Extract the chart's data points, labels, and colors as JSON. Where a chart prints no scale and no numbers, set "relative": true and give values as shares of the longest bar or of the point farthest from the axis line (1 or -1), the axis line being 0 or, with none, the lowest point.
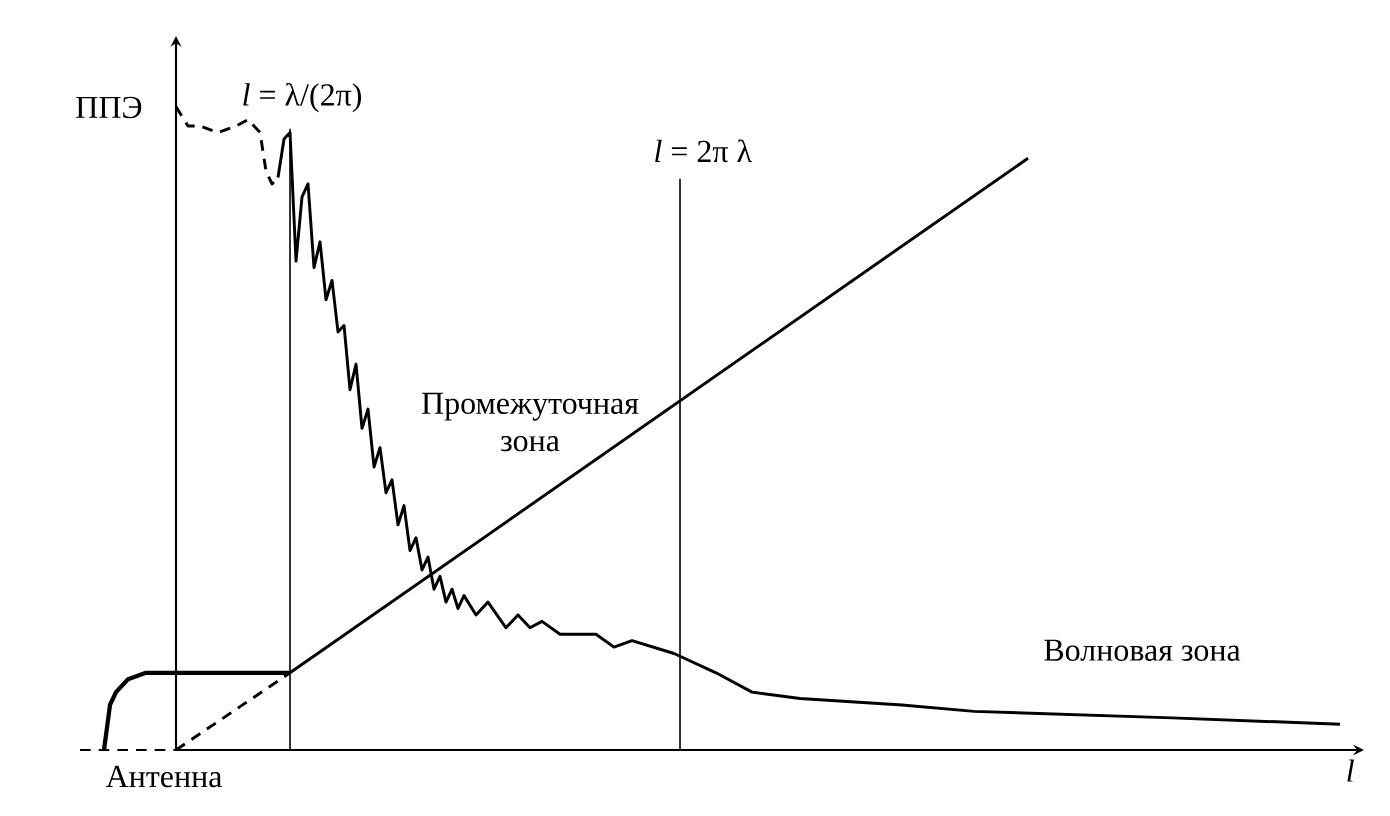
{
  "chart_data": {
    "type": "line",
    "relative": true,
    "xlabel": "*l*",
    "ylabel": "ППЭ",
    "categories": [
      null,
      null,
      null,
      null,
      null,
      null,
      null,
      null,
      null,
      null,
      null,
      null,
      null,
      null,
      null,
      null,
      null,
      null,
      null,
      null,
      null,
      null,
      null,
      null,
      null,
      null,
      null,
      null,
      null,
      null,
      null,
      null,
      null,
      null,
      null,
      null,
      null,
      null,
      null,
      null,
      null,
      null,
      null,
      null,
      null,
      null,
      null,
      null,
      null,
      null,
      null,
      null,
      null,
      null,
      null,
      null,
      null,
      null,
      null,
      null,
      null,
      null,
      null,
      null,
      null,
      null,
      null,
      null,
      null,
      null,
      null,
      null,
      null,
      null,
      null,
      null,
      null,
      null,
      null,
      null,
      null,
      null,
      null,
      null,
      null,
      null,
      null,
      null,
      null,
      null,
      null,
      null,
      null,
      null,
      null,
      null,
      null,
      null,
      null,
      null,
      null,
      null,
      null,
      null,
      null,
      null,
      null,
      null,
      null,
      null,
      null,
      null,
      null,
      null,
      null,
      null,
      null,
      null,
      null,
      null,
      null,
      null,
      null,
      null,
      null,
      null,
      null,
      null,
      null,
      null,
      null,
      null,
      null,
      null,
      null,
      null,
      null,
      null,
      null,
      null,
      null,
      null,
      null,
      null,
      null,
      null,
      null,
      null,
      null,
      null,
      null,
      null,
      null,
      null,
      null,
      null,
      null,
      null,
      null,
      null,
      null,
      null,
      null,
      null,
      null,
      null,
      null,
      null,
      null,
      null,
      null,
      null,
      null,
      null,
      null,
      null,
      null,
      null,
      null,
      null,
      null,
      null,
      null,
      null,
      null,
      null,
      null,
      null,
      null,
      null,
      null,
      null,
      null,
      null,
      null,
      null,
      null,
      null,
      null,
      null,
      null,
      null,
      null,
      null,
      null,
      null,
      null,
      null,
      null,
      null,
      null,
      null,
      null,
      null,
      null
    ],
    "series": [
      {
        "line_style": "dashed",
        "color": "#000000",
        "values": [
          null,
          null,
          null,
          null,
          null,
          null,
          null,
          null,
          null,
          null,
          null,
          null,
          null,
          null,
          null,
          null,
          1.0,
          null,
          0.97,
          null,
          0.97,
          null,
          null,
          0.96,
          null,
          null,
          0.97,
          null,
          0.98,
          null,
          0.96,
          0.9,
          0.88,
          0.89,
          null,
          null,
          null,
          null,
          null,
          null,
          null,
          null,
          null,
          null,
          null,
          null,
          null,
          null,
          null,
          null,
          null,
          null,
          null,
          null,
          null,
          null,
          null,
          null,
          null,
          null,
          null,
          null,
          null,
          null,
          null,
          null,
          null,
          null,
          null,
          null,
          null,
          null,
          null,
          null,
          null,
          null,
          null,
          null,
          null,
          null,
          null,
          null,
          null,
          null,
          null,
          null,
          null,
          null,
          null,
          null,
          null,
          null,
          null,
          null,
          null,
          null,
          null,
          null,
          null,
          null,
          null,
          null,
          null,
          null,
          null,
          null,
          null,
          null,
          null,
          null,
          null,
          null,
          null,
          null,
          null,
          null,
          null,
          null,
          null,
          null,
          null,
          null,
          null,
          null,
          null,
          null,
          null,
          null,
          null,
          null,
          null,
          null,
          null,
          null,
          null,
          null,
          null,
          null,
          null,
          null,
          null,
          null,
          null,
          null,
          null,
          null,
          null,
          null,
          null,
          null,
          null,
          null,
          null,
          null,
          null,
          null,
          null,
          null,
          null,
          null,
          null,
          null,
          null,
          null,
          null,
          null,
          null,
          null,
          null,
          null,
          null,
          null,
          null,
          null,
          null,
          null,
          null,
          null,
          null,
          null,
          null,
          null,
          null,
          null,
          null,
          null,
          null,
          null,
          null,
          null,
          null,
          null,
          null,
          null,
          null,
          null,
          null,
          null,
          null,
          null,
          null,
          null,
          null,
          null,
          null,
          null,
          null,
          null,
          null,
          null,
          null,
          null,
          null,
          null,
          null
        ]
      },
      {
        "line_style": "solid",
        "color": "#000000",
        "values": [
          null,
          null,
          null,
          null,
          null,
          null,
          null,
          null,
          null,
          null,
          null,
          null,
          null,
          null,
          null,
          null,
          null,
          null,
          null,
          null,
          null,
          null,
          null,
          null,
          null,
          null,
          null,
          null,
          null,
          null,
          null,
          null,
          null,
          0.89,
          0.95,
          0.96,
          0.76,
          0.86,
          0.88,
          0.75,
          0.79,
          0.7,
          0.73,
          0.65,
          0.66,
          0.56,
          0.6,
          0.5,
          0.53,
          0.44,
          0.47,
          0.4,
          0.42,
          0.35,
          0.38,
          0.31,
          0.33,
          0.28,
          0.3,
          0.25,
          0.27,
          0.23,
          0.25,
          0.22,
          0.24,
          null,
          0.21,
          null,
          0.23,
          null,
          null,
          0.19,
          null,
          0.21,
          null,
          0.19,
          null,
          0.2,
          null,
          null,
          0.18,
          null,
          null,
          0.18,
          null,
          null,
          0.18,
          null,
          null,
          0.16,
          null,
          null,
          0.17,
          null,
          null,
          null,
          null,
          null,
          null,
          0.15,
          null,
          null,
          null,
          null,
          null,
          null,
          0.12,
          null,
          null,
          null,
          null,
          null,
          0.09,
          null,
          null,
          null,
          null,
          null,
          null,
          null,
          0.08,
          null,
          null,
          null,
          null,
          null,
          null,
          null,
          null,
          null,
          null,
          null,
          null,
          null,
          null,
          null,
          null,
          0.07,
          null,
          null,
          null,
          null,
          null,
          null,
          null,
          null,
          null,
          null,
          null,
          0.06,
          null,
          null,
          null,
          null,
          null,
          null,
          null,
          null,
          null,
          null,
          null,
          null,
          null,
          null,
          null,
          null,
          null,
          null,
          null,
          null,
          null,
          null,
          null,
          null,
          null,
          null,
          null,
          null,
          null,
          null,
          null,
          null,
          0.05,
          null,
          null,
          null,
          null,
          null,
          null,
          null,
          null,
          null,
          null,
          null,
          null,
          null,
          null,
          null,
          null,
          null,
          null,
          null,
          null,
          null,
          null,
          null,
          null,
          null,
          null,
          null,
          0.04,
          null,
          null,
          null,
          null
        ]
      },
      {
        "line_style": "dashed",
        "color": "#000000",
        "values": [
          null,
          null,
          null,
          null,
          null,
          null,
          null,
          null,
          null,
          null,
          null,
          null,
          null,
          null,
          null,
          null,
          0,
          null,
          null,
          null,
          null,
          null,
          null,
          null,
          null,
          null,
          null,
          null,
          null,
          null,
          null,
          null,
          null,
          null,
          null,
          0.12,
          null,
          null,
          null,
          null,
          null,
          null,
          null,
          null,
          null,
          null,
          null,
          null,
          null,
          null,
          null,
          null,
          null,
          null,
          null,
          null,
          null,
          null,
          null,
          null,
          null,
          null,
          null,
          null,
          null,
          null,
          null,
          null,
          null,
          null,
          null,
          null,
          null,
          null,
          null,
          null,
          null,
          null,
          null,
          null,
          null,
          null,
          null,
          null,
          null,
          null,
          null,
          null,
          null,
          null,
          null,
          null,
          null,
          null,
          null,
          null,
          null,
          null,
          null,
          null,
          null,
          null,
          null,
          null,
          null,
          null,
          null,
          null,
          null,
          null,
          null,
          null,
          null,
          null,
          null,
          null,
          null,
          null,
          null,
          null,
          null,
          null,
          null,
          null,
          null,
          null,
          null,
          null,
          null,
          null,
          null,
          null,
          null,
          null,
          null,
          null,
          null,
          null,
          null,
          null,
          null,
          null,
          null,
          null,
          null,
          null,
          null,
          null,
          null,
          null,
          null,
          null,
          null,
          null,
          null,
          null,
          null,
          null,
          null,
          null,
          null,
          null,
          null,
          null,
          null,
          null,
          null,
          null,
          null,
          null,
          null,
          null,
          null,
          null,
          null,
          null,
          null,
          null,
          null,
          null,
          null,
          null,
          null,
          null,
          null,
          null,
          null,
          null,
          null,
          null,
          null,
          null,
          null,
          null,
          null,
          null,
          null,
          null,
          null,
          null,
          null,
          null,
          null,
          null,
          null,
          null,
          null,
          null,
          null,
          null,
          null,
          null,
          null,
          null,
          null
        ]
      },
      {
        "line_style": "solid",
        "color": "#000000",
        "values": [
          null,
          null,
          null,
          null,
          null,
          null,
          null,
          null,
          null,
          null,
          null,
          null,
          null,
          null,
          null,
          null,
          null,
          null,
          null,
          null,
          null,
          null,
          null,
          null,
          null,
          null,
          null,
          null,
          null,
          null,
          null,
          null,
          null,
          null,
          null,
          0.12,
          null,
          null,
          null,
          null,
          null,
          null,
          null,
          null,
          null,
          null,
          null,
          null,
          null,
          null,
          null,
          null,
          null,
          null,
          null,
          null,
          null,
          null,
          null,
          null,
          null,
          null,
          null,
          null,
          null,
          null,
          null,
          null,
          null,
          null,
          null,
          null,
          null,
          null,
          null,
          null,
          null,
          null,
          null,
          null,
          null,
          null,
          null,
          null,
          null,
          null,
          null,
          null,
          null,
          null,
          null,
          null,
          null,
          null,
          null,
          null,
          null,
          null,
          null,
          null,
          null,
          null,
          null,
          null,
          null,
          null,
          null,
          null,
          null,
          null,
          null,
          null,
          null,
          null,
          null,
          null,
          null,
          null,
          null,
          null,
          null,
          null,
          null,
          null,
          null,
          null,
          null,
          null,
          null,
          null,
          null,
          null,
          null,
          null,
          null,
          null,
          null,
          null,
          null,
          null,
          null,
          null,
          null,
          null,
          null,
          null,
          null,
          null,
          null,
          null,
          null,
          null,
          null,
          null,
          null,
          null,
          null,
          null,
          0.92,
          null,
          null,
          null,
          null,
          null,
          null,
          null,
          null,
          null,
          null,
          null,
          null,
          null,
          null,
          null,
          null,
          null,
          null,
          null,
          null,
          null,
          null,
          null,
          null,
          null,
          null,
          null,
          null,
          null,
          null,
          null,
          null,
          null,
          null,
          null,
          null,
          null,
          null,
          null,
          null,
          null,
          null,
          null,
          null,
          null,
          null,
          null,
          null,
          null,
          null,
          null,
          null,
          null,
          null,
          null,
          null
        ]
      },
      {
        "line_style": "solid",
        "color": "#000000",
        "values": [
          null,
          null,
          null,
          null,
          0,
          0.07,
          0.09,
          null,
          0.11,
          null,
          null,
          0.12,
          null,
          null,
          null,
          null,
          0.12,
          null,
          null,
          null,
          null,
          null,
          null,
          null,
          null,
          null,
          null,
          null,
          null,
          null,
          null,
          null,
          null,
          null,
          null,
          0.12,
          null,
          null,
          null,
          null,
          null,
          null,
          null,
          null,
          null,
          null,
          null,
          null,
          null,
          null,
          null,
          null,
          null,
          null,
          null,
          null,
          null,
          null,
          null,
          null,
          null,
          null,
          null,
          null,
          null,
          null,
          null,
          null,
          null,
          null,
          null,
          null,
          null,
          null,
          null,
          null,
          null,
          null,
          null,
          null,
          null,
          null,
          null,
          null,
          null,
          null,
          null,
          null,
          null,
          null,
          null,
          null,
          null,
          null,
          null,
          null,
          null,
          null,
          null,
          null,
          null,
          null,
          null,
          null,
          null,
          null,
          null,
          null,
          null,
          null,
          null,
          null,
          null,
          null,
          null,
          null,
          null,
          null,
          null,
          null,
          null,
          null,
          null,
          null,
          null,
          null,
          null,
          null,
          null,
          null,
          null,
          null,
          null,
          null,
          null,
          null,
          null,
          null,
          null,
          null,
          null,
          null,
          null,
          null,
          null,
          null,
          null,
          null,
          null,
          null,
          null,
          null,
          null,
          null,
          null,
          null,
          null,
          null,
          null,
          null,
          null,
          null,
          null,
          null,
          null,
          null,
          null,
          null,
          null,
          null,
          null,
          null,
          null,
          null,
          null,
          null,
          null,
          null,
          null,
          null,
          null,
          null,
          null,
          null,
          null,
          null,
          null,
          null,
          null,
          null,
          null,
          null,
          null,
          null,
          null,
          null,
          null,
          null,
          null,
          null,
          null,
          null,
          null,
          null,
          null,
          null,
          null,
          null,
          null,
          null,
          null,
          null,
          null,
          null,
          null
        ]
      }
    ],
    "annotations": [
      "*l* = λ/(2π)",
      "*l* = 2π λ",
      "Промежуточная зона",
      "Волновая зона",
      "Антенна"
    ]
  }
}
